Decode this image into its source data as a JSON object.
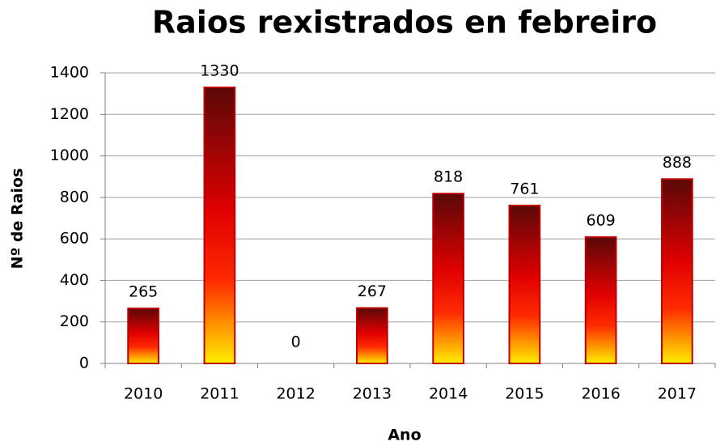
{
  "chart_data": {
    "type": "bar",
    "title": "Raios rexistrados en febreiro",
    "x_label": "Ano",
    "y_label": "Nº de Raios",
    "categories": [
      "2010",
      "2011",
      "2012",
      "2013",
      "2014",
      "2015",
      "2016",
      "2017"
    ],
    "values": [
      265,
      1330,
      0,
      267,
      818,
      761,
      609,
      888
    ],
    "color": "#c00000",
    "ylim": [
      0,
      1400
    ],
    "yticks": [
      0,
      200,
      400,
      600,
      800,
      1000,
      1200,
      1400
    ],
    "grid": true
  }
}
